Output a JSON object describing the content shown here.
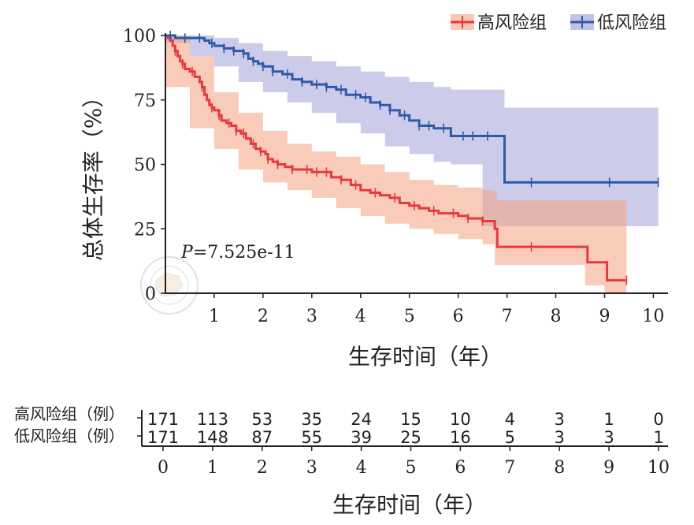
{
  "chart_data": {
    "type": "line",
    "subtype": "kaplan-meier",
    "ylabel": "总体生存率（%）",
    "xlabel": "生存时间（年）",
    "x_ticks": [
      "1",
      "2",
      "3",
      "4",
      "5",
      "6",
      "7",
      "8",
      "9",
      "10"
    ],
    "y_ticks": [
      "0",
      "25",
      "50",
      "75",
      "100"
    ],
    "xlim": [
      0,
      10.3
    ],
    "ylim": [
      0,
      100
    ],
    "annotation": {
      "p_prefix": "P",
      "p_value": "=7.525e-11"
    },
    "legend": {
      "placement": "top-right"
    },
    "colors": {
      "high": "#e8383d",
      "low": "#2f5aa8",
      "high_ci": "#f4a380",
      "low_ci": "#9a9ad6",
      "axis": "#222222"
    },
    "series": [
      {
        "key": "high",
        "name": "高风险组",
        "points": [
          [
            0,
            100
          ],
          [
            0.05,
            99
          ],
          [
            0.1,
            98
          ],
          [
            0.15,
            96
          ],
          [
            0.2,
            94
          ],
          [
            0.25,
            92
          ],
          [
            0.3,
            90
          ],
          [
            0.35,
            89
          ],
          [
            0.4,
            87
          ],
          [
            0.5,
            86
          ],
          [
            0.6,
            84
          ],
          [
            0.7,
            82
          ],
          [
            0.75,
            80
          ],
          [
            0.8,
            77
          ],
          [
            0.85,
            75
          ],
          [
            0.9,
            73
          ],
          [
            0.95,
            72
          ],
          [
            1.0,
            71
          ],
          [
            1.1,
            69
          ],
          [
            1.15,
            67
          ],
          [
            1.25,
            66
          ],
          [
            1.35,
            65
          ],
          [
            1.45,
            63
          ],
          [
            1.55,
            62
          ],
          [
            1.65,
            60
          ],
          [
            1.75,
            58
          ],
          [
            1.85,
            56
          ],
          [
            1.95,
            55
          ],
          [
            2.05,
            54
          ],
          [
            2.1,
            52
          ],
          [
            2.2,
            51
          ],
          [
            2.3,
            50
          ],
          [
            2.45,
            49
          ],
          [
            2.6,
            48
          ],
          [
            2.8,
            48
          ],
          [
            3.0,
            47
          ],
          [
            3.2,
            47
          ],
          [
            3.4,
            45
          ],
          [
            3.6,
            44
          ],
          [
            3.8,
            42
          ],
          [
            4.0,
            40
          ],
          [
            4.2,
            39
          ],
          [
            4.4,
            38
          ],
          [
            4.6,
            37
          ],
          [
            4.8,
            35
          ],
          [
            5.0,
            34
          ],
          [
            5.2,
            33
          ],
          [
            5.4,
            32
          ],
          [
            5.6,
            31
          ],
          [
            5.8,
            31
          ],
          [
            6.0,
            30
          ],
          [
            6.2,
            29
          ],
          [
            6.5,
            28
          ],
          [
            6.7,
            28
          ],
          [
            6.75,
            25
          ],
          [
            6.8,
            18
          ],
          [
            7.5,
            18
          ],
          [
            8.6,
            18
          ],
          [
            8.65,
            12
          ],
          [
            9.0,
            12
          ],
          [
            9.05,
            5
          ],
          [
            9.45,
            5
          ]
        ],
        "ci": [
          [
            0,
            100,
            100
          ],
          [
            0.5,
            92,
            80
          ],
          [
            1.0,
            78,
            64
          ],
          [
            1.5,
            70,
            56
          ],
          [
            2.0,
            63,
            48
          ],
          [
            2.5,
            58,
            43
          ],
          [
            3.0,
            55,
            40
          ],
          [
            3.5,
            53,
            37
          ],
          [
            4.0,
            50,
            33
          ],
          [
            4.5,
            47,
            30
          ],
          [
            5.0,
            44,
            27
          ],
          [
            5.5,
            42,
            25
          ],
          [
            6.0,
            41,
            23
          ],
          [
            6.5,
            40,
            21
          ],
          [
            6.75,
            39,
            19
          ],
          [
            6.8,
            36,
            11
          ],
          [
            7.5,
            36,
            11
          ],
          [
            8.6,
            36,
            11
          ],
          [
            8.65,
            36,
            3
          ],
          [
            9.0,
            36,
            3
          ],
          [
            9.05,
            36,
            0
          ],
          [
            9.45,
            36,
            0
          ]
        ],
        "censor_times": [
          0.2,
          0.35,
          0.55,
          0.75,
          0.95,
          1.1,
          1.3,
          1.45,
          1.6,
          1.8,
          1.95,
          2.1,
          2.3,
          2.6,
          2.9,
          3.1,
          3.3,
          3.6,
          3.9,
          4.3,
          4.7,
          5.1,
          5.5,
          5.9,
          6.2,
          6.5,
          7.5,
          9.45
        ]
      },
      {
        "key": "low",
        "name": "低风险组",
        "points": [
          [
            0,
            100
          ],
          [
            0.2,
            99
          ],
          [
            0.5,
            99
          ],
          [
            0.8,
            98
          ],
          [
            0.9,
            97
          ],
          [
            1.0,
            96
          ],
          [
            1.2,
            95
          ],
          [
            1.4,
            94
          ],
          [
            1.6,
            93
          ],
          [
            1.7,
            91
          ],
          [
            1.8,
            90
          ],
          [
            1.9,
            89
          ],
          [
            2.0,
            88
          ],
          [
            2.2,
            86
          ],
          [
            2.4,
            85
          ],
          [
            2.6,
            83
          ],
          [
            2.8,
            82
          ],
          [
            3.0,
            81
          ],
          [
            3.3,
            80
          ],
          [
            3.5,
            79
          ],
          [
            3.7,
            77
          ],
          [
            4.0,
            76
          ],
          [
            4.2,
            74
          ],
          [
            4.4,
            73
          ],
          [
            4.6,
            71
          ],
          [
            4.8,
            69
          ],
          [
            5.0,
            67
          ],
          [
            5.2,
            65
          ],
          [
            5.5,
            64
          ],
          [
            5.8,
            64
          ],
          [
            5.85,
            61
          ],
          [
            6.5,
            61
          ],
          [
            6.9,
            61
          ],
          [
            6.95,
            43
          ],
          [
            7.5,
            43
          ],
          [
            8.5,
            43
          ],
          [
            10.1,
            43
          ]
        ],
        "ci": [
          [
            0,
            100,
            100
          ],
          [
            0.5,
            100,
            97
          ],
          [
            1.0,
            99,
            92
          ],
          [
            1.5,
            97,
            88
          ],
          [
            2.0,
            94,
            82
          ],
          [
            2.5,
            92,
            78
          ],
          [
            3.0,
            90,
            74
          ],
          [
            3.5,
            88,
            70
          ],
          [
            4.0,
            86,
            66
          ],
          [
            4.5,
            84,
            62
          ],
          [
            5.0,
            82,
            57
          ],
          [
            5.5,
            80,
            54
          ],
          [
            5.85,
            79,
            51
          ],
          [
            6.5,
            79,
            50
          ],
          [
            6.95,
            72,
            26
          ],
          [
            10.1,
            72,
            26
          ]
        ],
        "censor_times": [
          0.1,
          0.4,
          0.7,
          0.95,
          1.2,
          1.4,
          1.6,
          1.8,
          2.0,
          2.2,
          2.5,
          2.8,
          3.1,
          3.3,
          3.6,
          3.9,
          4.1,
          4.4,
          4.6,
          4.9,
          5.2,
          5.4,
          5.7,
          6.1,
          6.3,
          6.6,
          7.5,
          9.1,
          10.1
        ]
      }
    ],
    "risk_table": {
      "xlabel": "生存时间（年）",
      "x_ticks": [
        "0",
        "1",
        "2",
        "3",
        "4",
        "5",
        "6",
        "7",
        "8",
        "9",
        "10"
      ],
      "rows": [
        {
          "label": "高风险组（例）",
          "values": [
            "171",
            "113",
            "53",
            "35",
            "24",
            "15",
            "10",
            "4",
            "3",
            "1",
            "0"
          ]
        },
        {
          "label": "低风险组（例）",
          "values": [
            "171",
            "148",
            "87",
            "55",
            "39",
            "25",
            "16",
            "5",
            "3",
            "3",
            "1"
          ]
        }
      ]
    }
  }
}
